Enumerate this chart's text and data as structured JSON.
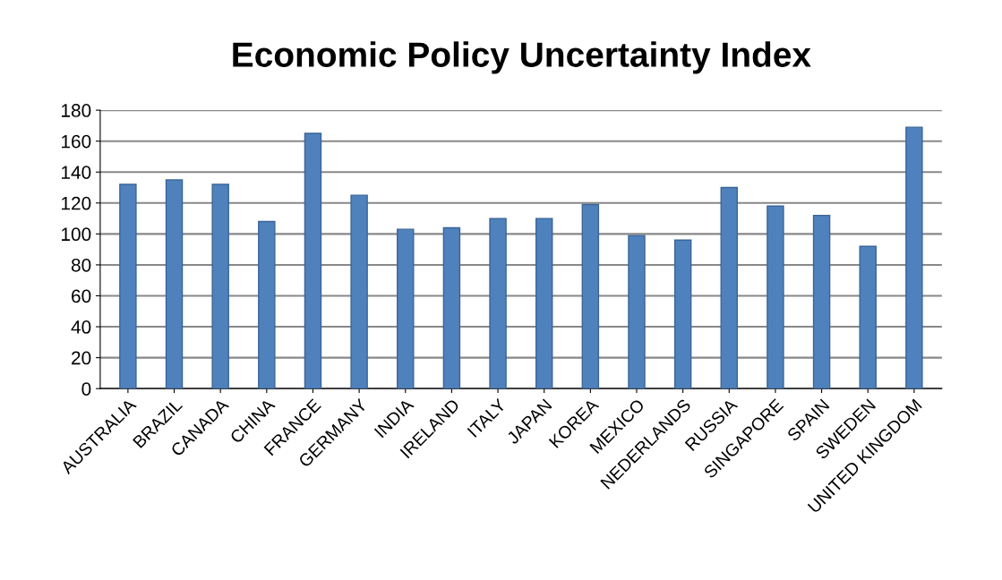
{
  "chart_data": {
    "type": "bar",
    "title": "Economic Policy Uncertainty Index",
    "categories": [
      "AUSTRALIA",
      "BRAZIL",
      "CANADA",
      "CHINA",
      "FRANCE",
      "GERMANY",
      "INDIA",
      "IRELAND",
      "ITALY",
      "JAPAN",
      "KOREA",
      "MEXICO",
      "NEDERLANDS",
      "RUSSIA",
      "SINGAPORE",
      "SPAIN",
      "SWEDEN",
      "UNITED KINGDOM"
    ],
    "values": [
      132,
      135,
      132,
      108,
      165,
      125,
      103,
      104,
      110,
      110,
      119,
      99,
      96,
      130,
      118,
      112,
      92,
      169
    ],
    "color": "#4f81bd",
    "ylim": [
      0,
      180
    ],
    "yticks": [
      0,
      20,
      40,
      60,
      80,
      100,
      120,
      140,
      160,
      180
    ],
    "grid": "y",
    "legend": false
  }
}
